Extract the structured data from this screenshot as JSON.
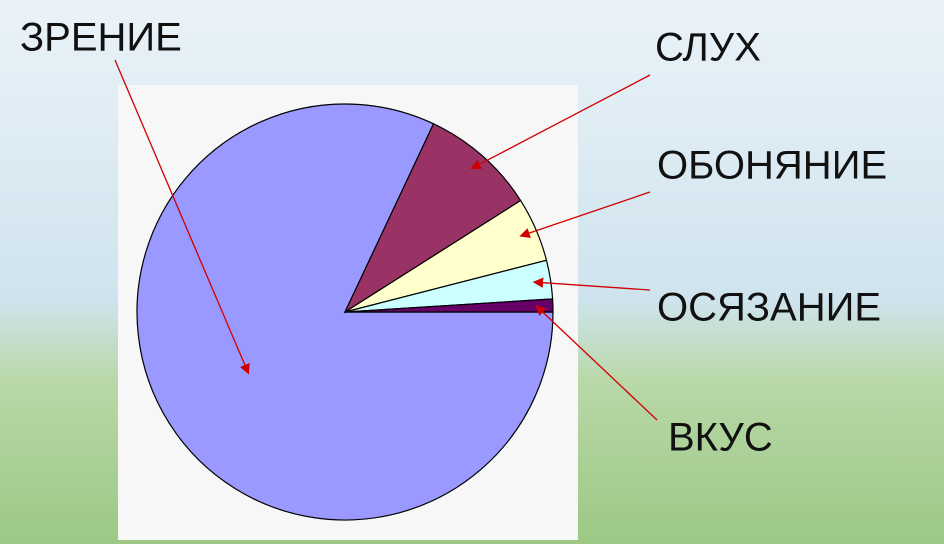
{
  "chart_data": {
    "type": "pie",
    "categories": [
      "ЗРЕНИЕ",
      "СЛУХ",
      "ОБОНЯНИЕ",
      "ОСЯЗАНИЕ",
      "ВКУС"
    ],
    "values": [
      82,
      9,
      5,
      3,
      1
    ],
    "colors": [
      "#9999ff",
      "#993366",
      "#ffffcc",
      "#ccffff",
      "#660066"
    ]
  }
}
